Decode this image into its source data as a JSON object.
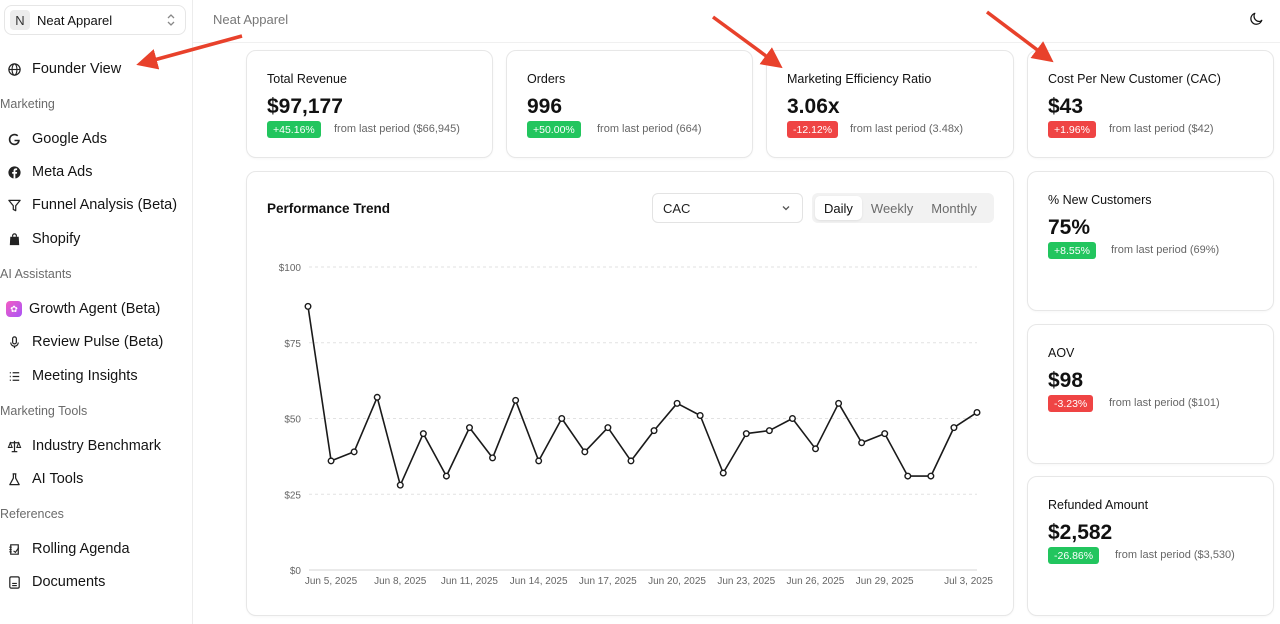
{
  "workspace": {
    "initial": "N",
    "name": "Neat Apparel"
  },
  "topbar": {
    "title": "Neat Apparel"
  },
  "sidebar": {
    "founder_view": "Founder View",
    "sections": {
      "marketing": "Marketing",
      "ai_assistants": "AI Assistants",
      "marketing_tools": "Marketing Tools",
      "references": "References"
    },
    "items": {
      "google_ads": "Google Ads",
      "meta_ads": "Meta Ads",
      "funnel": "Funnel Analysis (Beta)",
      "shopify": "Shopify",
      "growth_agent": "Growth Agent (Beta)",
      "review_pulse": "Review Pulse (Beta)",
      "meeting_insights": "Meeting Insights",
      "industry_benchmark": "Industry Benchmark",
      "ai_tools": "AI Tools",
      "rolling_agenda": "Rolling Agenda",
      "documents": "Documents"
    }
  },
  "kpis": [
    {
      "title": "Total Revenue",
      "value": "$97,177",
      "change": "+45.16%",
      "direction": "up",
      "compare": "from last period ($66,945)"
    },
    {
      "title": "Orders",
      "value": "996",
      "change": "+50.00%",
      "direction": "up",
      "compare": "from last period (664)"
    },
    {
      "title": "Marketing Efficiency Ratio",
      "value": "3.06x",
      "change": "-12.12%",
      "direction": "down",
      "compare": "from last period (3.48x)"
    },
    {
      "title": "Cost Per New Customer (CAC)",
      "value": "$43",
      "change": "+1.96%",
      "direction": "down",
      "compare": "from last period ($42)"
    },
    {
      "title": "% New Customers",
      "value": "75%",
      "change": "+8.55%",
      "direction": "up",
      "compare": "from last period (69%)"
    },
    {
      "title": "AOV",
      "value": "$98",
      "change": "-3.23%",
      "direction": "down",
      "compare": "from last period ($101)"
    },
    {
      "title": "Refunded Amount",
      "value": "$2,582",
      "change": "-26.86%",
      "direction": "up",
      "compare": "from last period ($3,530)"
    }
  ],
  "chart_panel": {
    "title": "Performance Trend",
    "metric_select": "CAC",
    "periods": [
      "Daily",
      "Weekly",
      "Monthly"
    ],
    "active_period": "Daily"
  },
  "chart_data": {
    "type": "line",
    "ylim": [
      0,
      100
    ],
    "y_ticks": [
      "$0",
      "$25",
      "$50",
      "$75",
      "$100"
    ],
    "x_tick_labels": [
      "Jun 5, 2025",
      "Jun 8, 2025",
      "Jun 11, 2025",
      "Jun 14, 2025",
      "Jun 17, 2025",
      "Jun 20, 2025",
      "Jun 23, 2025",
      "Jun 26, 2025",
      "Jun 29, 2025",
      "Jul 3, 2025"
    ],
    "x": [
      "Jun 5",
      "Jun 6",
      "Jun 7",
      "Jun 8",
      "Jun 9",
      "Jun 10",
      "Jun 11",
      "Jun 12",
      "Jun 13",
      "Jun 14",
      "Jun 15",
      "Jun 16",
      "Jun 17",
      "Jun 18",
      "Jun 19",
      "Jun 20",
      "Jun 21",
      "Jun 22",
      "Jun 23",
      "Jun 24",
      "Jun 25",
      "Jun 26",
      "Jun 27",
      "Jun 28",
      "Jun 29",
      "Jun 30",
      "Jul 1",
      "Jul 2",
      "Jul 3",
      "Jul 4"
    ],
    "values": [
      87,
      36,
      39,
      57,
      28,
      45,
      31,
      47,
      37,
      56,
      36,
      50,
      39,
      47,
      36,
      46,
      55,
      51,
      32,
      45,
      46,
      50,
      40,
      55,
      42,
      45,
      31,
      31,
      47,
      52
    ],
    "grid": true,
    "line_color": "#1a1a1a"
  },
  "colors": {
    "up": "#22c55e",
    "down": "#ef4444",
    "annotation_arrow": "#e8412b"
  },
  "icons": [
    "globe-icon",
    "google-icon",
    "facebook-icon",
    "funnel-icon",
    "shopify-bag-icon",
    "growth-agent-icon",
    "microphone-icon",
    "list-icon",
    "scale-icon",
    "flask-icon",
    "agenda-icon",
    "document-icon",
    "moon-icon",
    "chevron-down-icon",
    "chevrons-up-down-icon"
  ]
}
